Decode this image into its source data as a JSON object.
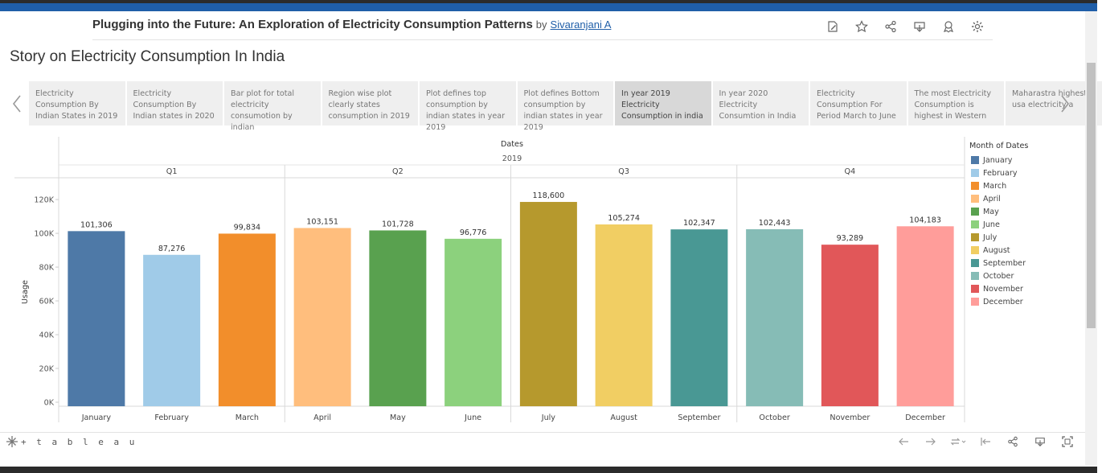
{
  "header": {
    "title": "Plugging into the Future: An Exploration of Electricity Consumption Patterns",
    "by": "by",
    "author": "Sivaranjani A",
    "icons": [
      "edit-icon",
      "star-icon",
      "share-icon",
      "download-icon",
      "badge-icon",
      "settings-icon"
    ]
  },
  "story": {
    "title": "Story on Electricity Consumption In India",
    "points": [
      {
        "label": "Electricity Consumption By Indian States in 2019",
        "active": false
      },
      {
        "label": "Electricity Consumption By Indian states in 2020",
        "active": false
      },
      {
        "label": "Bar plot for total electricity consumotion by indian",
        "active": false
      },
      {
        "label": "Region wise plot clearly states consumption in 2019",
        "active": false
      },
      {
        "label": "Plot defines top consumption by indian states in year 2019",
        "active": false
      },
      {
        "label": "Plot defines Bottom consumption by indian states in year 2019",
        "active": false
      },
      {
        "label": "In year 2019 Electricity Consumption in india",
        "active": true
      },
      {
        "label": "In year 2020 Electricity Consumtion in India",
        "active": false
      },
      {
        "label": "Electricity Consumption For Period March to June",
        "active": false
      },
      {
        "label": "The most Electricity Consumption is highest in Western",
        "active": false
      },
      {
        "label": "Maharastra highest usa electricity a",
        "active": false
      }
    ]
  },
  "chart_data": {
    "type": "bar",
    "title": "Dates",
    "subtitle": "2019",
    "ylabel": "Usage",
    "xlabel": "",
    "ylim": [
      0,
      130000
    ],
    "yticks": [
      0,
      20000,
      40000,
      60000,
      80000,
      100000,
      120000
    ],
    "ytick_labels": [
      "0K",
      "20K",
      "40K",
      "60K",
      "80K",
      "100K",
      "120K"
    ],
    "groups": [
      {
        "label": "Q1",
        "months": [
          0,
          1,
          2
        ]
      },
      {
        "label": "Q2",
        "months": [
          3,
          4,
          5
        ]
      },
      {
        "label": "Q3",
        "months": [
          6,
          7,
          8
        ]
      },
      {
        "label": "Q4",
        "months": [
          9,
          10,
          11
        ]
      }
    ],
    "categories": [
      "January",
      "February",
      "March",
      "April",
      "May",
      "June",
      "July",
      "August",
      "September",
      "October",
      "November",
      "December"
    ],
    "values": [
      101306,
      87276,
      99834,
      103151,
      101728,
      96776,
      118600,
      105274,
      102347,
      102443,
      93289,
      104183
    ],
    "value_labels": [
      "101,306",
      "87,276",
      "99,834",
      "103,151",
      "101,728",
      "96,776",
      "118,600",
      "105,274",
      "102,347",
      "102,443",
      "93,289",
      "104,183"
    ],
    "colors": [
      "#4e79a7",
      "#a0cbe8",
      "#f28e2b",
      "#ffbe7d",
      "#59a14f",
      "#8cd17d",
      "#b6992d",
      "#f1ce63",
      "#499894",
      "#86bcb6",
      "#e15759",
      "#ff9d9a"
    ],
    "legend_title": "Month of Dates",
    "legend_position": "right"
  },
  "footer": {
    "logo": "+ t a b l e a u",
    "icons": [
      "undo-icon",
      "redo-icon",
      "revert-icon",
      "reset-icon",
      "share-icon",
      "download-icon",
      "fullscreen-icon"
    ]
  }
}
